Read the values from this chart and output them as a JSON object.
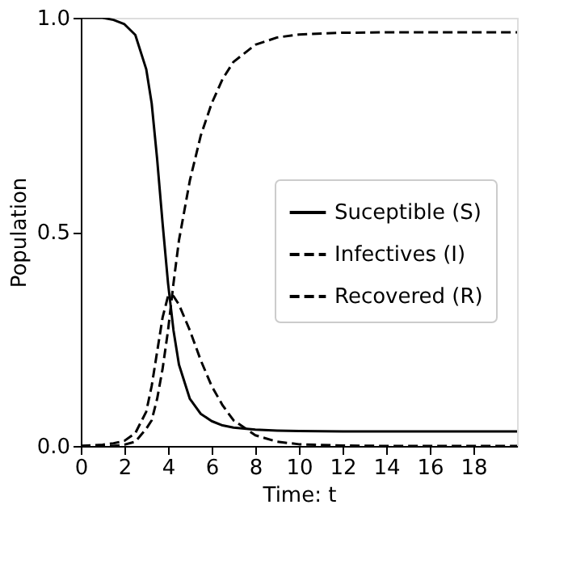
{
  "chart_data": {
    "type": "line",
    "xlabel": "Time: t",
    "ylabel": "Population",
    "x": [
      0,
      1,
      1.5,
      2,
      2.5,
      3,
      3.25,
      3.5,
      3.75,
      4,
      4.25,
      4.5,
      5,
      5.5,
      6,
      6.5,
      7,
      8,
      9,
      10,
      12,
      14,
      16,
      18,
      20
    ],
    "series": [
      {
        "name": "Suceptible (S)",
        "color": "#000000",
        "line_style": "solid",
        "values": [
          1,
          1,
          0.995,
          0.985,
          0.96,
          0.88,
          0.8,
          0.67,
          0.52,
          0.38,
          0.27,
          0.19,
          0.11,
          0.075,
          0.058,
          0.048,
          0.043,
          0.038,
          0.036,
          0.035,
          0.034,
          0.034,
          0.034,
          0.034,
          0.034
        ]
      },
      {
        "name": "Infectives (I)",
        "color": "#000000",
        "line_style": "dashed",
        "values": [
          0,
          0.003,
          0.006,
          0.012,
          0.03,
          0.08,
          0.14,
          0.22,
          0.3,
          0.35,
          0.35,
          0.33,
          0.27,
          0.2,
          0.14,
          0.095,
          0.06,
          0.025,
          0.01,
          0.004,
          0.001,
          0,
          0,
          0,
          0
        ]
      },
      {
        "name": "Recovered (R)",
        "color": "#000000",
        "line_style": "dashed",
        "values": [
          0,
          0,
          0,
          0.003,
          0.01,
          0.04,
          0.06,
          0.11,
          0.18,
          0.27,
          0.38,
          0.48,
          0.62,
          0.725,
          0.8,
          0.857,
          0.897,
          0.937,
          0.954,
          0.961,
          0.965,
          0.966,
          0.966,
          0.966,
          0.966
        ]
      }
    ],
    "xlim": [
      0,
      20
    ],
    "xticks": [
      0,
      2,
      4,
      6,
      8,
      10,
      12,
      14,
      16,
      18
    ],
    "ylim": [
      0,
      1
    ],
    "yticks": [
      {
        "value": 0,
        "label": "0.0"
      },
      {
        "value": 0.5,
        "label": "0.5"
      },
      {
        "value": 1,
        "label": "1.0"
      }
    ],
    "grid": false,
    "legend": "right",
    "marker": "none"
  }
}
